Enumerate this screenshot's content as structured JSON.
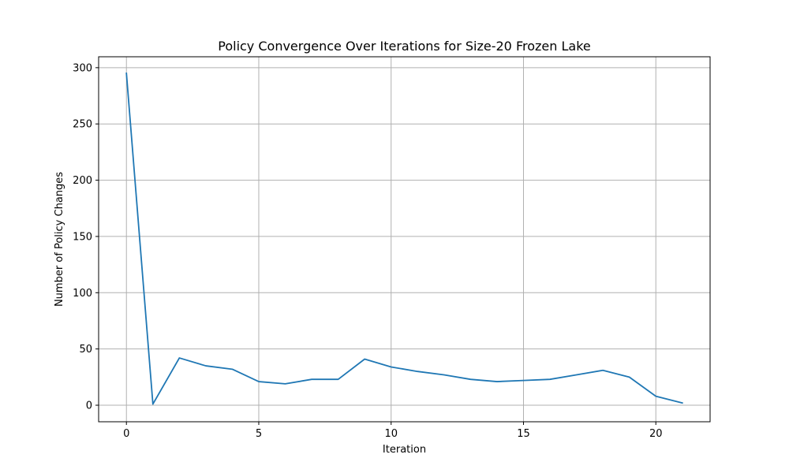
{
  "chart_data": {
    "type": "line",
    "title": "Policy Convergence Over Iterations for Size-20 Frozen Lake",
    "xlabel": "Iteration",
    "ylabel": "Number of Policy Changes",
    "xlim": [
      -1.05,
      22.05
    ],
    "ylim": [
      -14.7,
      309.7
    ],
    "xticks": [
      0,
      5,
      10,
      15,
      20
    ],
    "yticks": [
      0,
      50,
      100,
      150,
      200,
      250,
      300
    ],
    "grid": true,
    "line_color": "#1f77b4",
    "series": [
      {
        "x": [
          0,
          1,
          2,
          3,
          4,
          5,
          6,
          7,
          8,
          9,
          10,
          11,
          12,
          13,
          14,
          15,
          16,
          17,
          18,
          19,
          20,
          21
        ],
        "y": [
          295,
          1,
          42,
          35,
          32,
          21,
          19,
          23,
          23,
          41,
          34,
          30,
          27,
          23,
          21,
          22,
          23,
          27,
          31,
          25,
          8,
          2
        ]
      }
    ]
  }
}
